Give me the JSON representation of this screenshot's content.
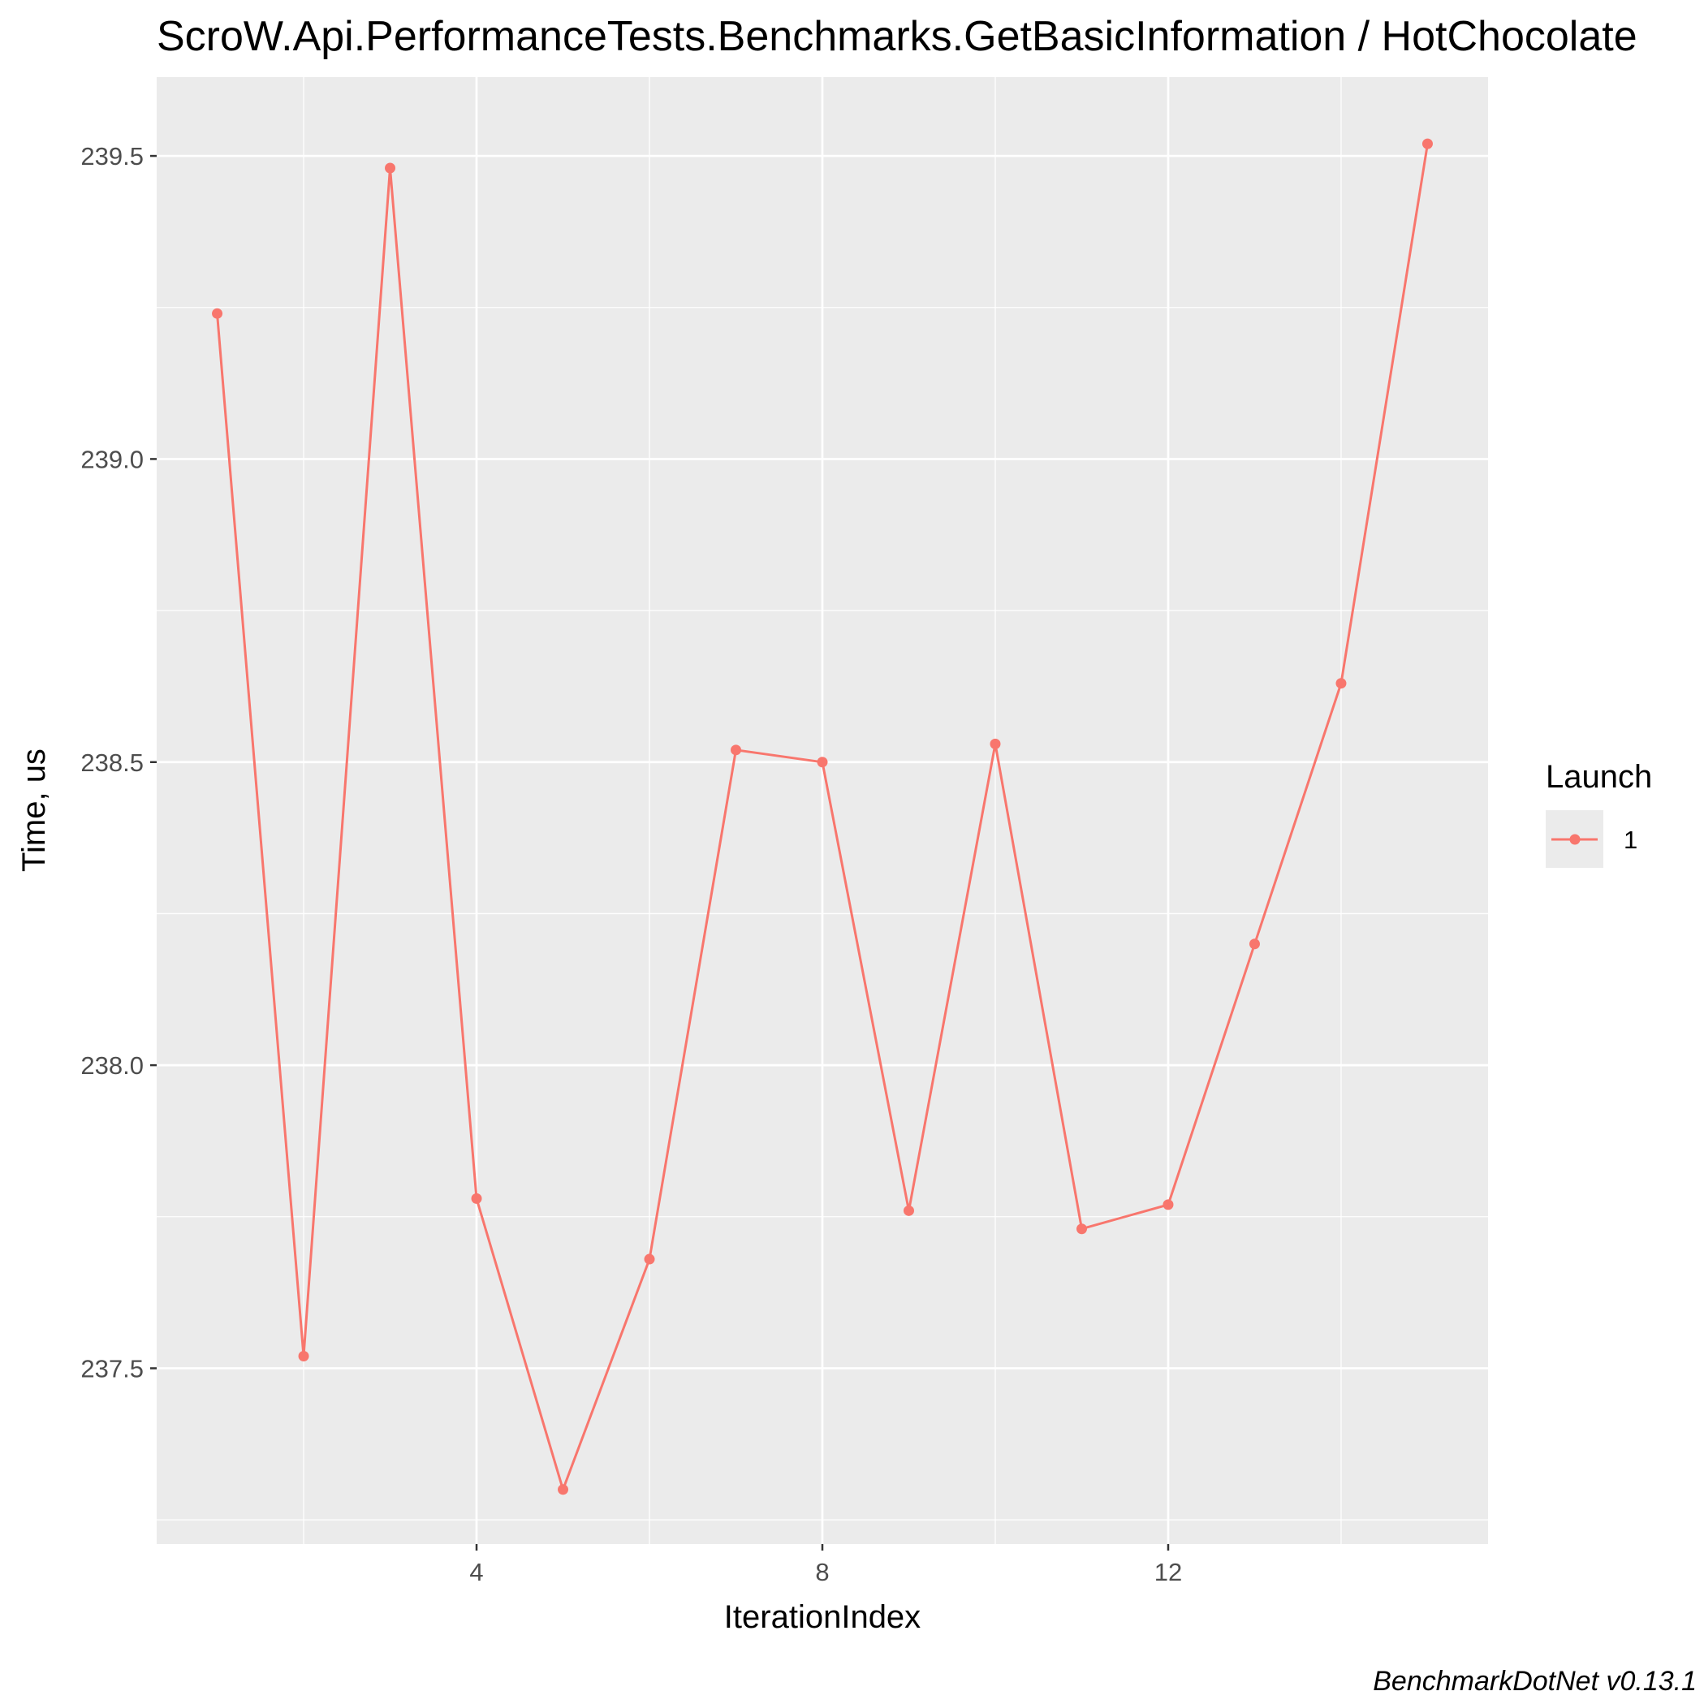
{
  "chart_data": {
    "type": "line",
    "title": "ScroW.Api.PerformanceTests.Benchmarks.GetBasicInformation / HotChocolate",
    "xlabel": "IterationIndex",
    "ylabel": "Time, us",
    "caption": "BenchmarkDotNet v0.13.1",
    "legend": {
      "title": "Launch",
      "placement": "right"
    },
    "xlim": [
      0.3,
      15.7
    ],
    "ylim": [
      237.21,
      239.63
    ],
    "x_major_ticks": [
      4,
      8,
      12
    ],
    "x_minor_ticks": [
      2,
      6,
      10,
      14
    ],
    "y_major_ticks": [
      237.5,
      238.0,
      238.5,
      239.0,
      239.5
    ],
    "y_minor_ticks": [
      237.25,
      237.75,
      238.25,
      238.75,
      239.25
    ],
    "grid": true,
    "series": [
      {
        "name": "1",
        "color": "#f8766d",
        "x": [
          1,
          2,
          3,
          4,
          5,
          6,
          7,
          8,
          9,
          10,
          11,
          12,
          13,
          14,
          15
        ],
        "y": [
          239.24,
          237.52,
          239.48,
          237.78,
          237.3,
          237.68,
          238.52,
          238.5,
          237.76,
          238.53,
          237.73,
          237.77,
          238.2,
          238.63,
          239.52
        ]
      }
    ]
  }
}
